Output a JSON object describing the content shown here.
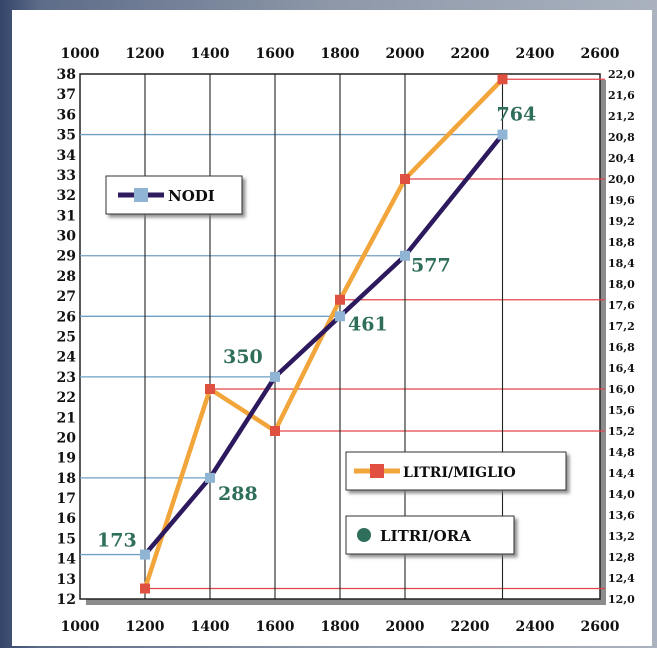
{
  "chart_data": {
    "type": "line",
    "x_ticks": [
      "1000",
      "1200",
      "1400",
      "1600",
      "1800",
      "2000",
      "2200",
      "2400",
      "2600"
    ],
    "left_ticks": [
      "12",
      "13",
      "14",
      "15",
      "16",
      "17",
      "18",
      "19",
      "20",
      "21",
      "22",
      "23",
      "24",
      "25",
      "26",
      "27",
      "28",
      "29",
      "30",
      "31",
      "32",
      "33",
      "34",
      "35",
      "36",
      "37",
      "38"
    ],
    "right_ticks": [
      "12,0",
      "12,4",
      "12,8",
      "13,2",
      "13,6",
      "14,0",
      "14,4",
      "14,8",
      "15,2",
      "15,6",
      "16,0",
      "16,4",
      "16,8",
      "17,2",
      "17,6",
      "18,0",
      "18,4",
      "18,8",
      "19,2",
      "19,6",
      "20,0",
      "20,4",
      "20,8",
      "21,2",
      "21,6",
      "22,0"
    ],
    "xlim": [
      1000,
      2600
    ],
    "ylim_left": [
      12,
      38
    ],
    "ylim_right": [
      12.0,
      22.0
    ],
    "legend": [
      {
        "label": "NODI",
        "color": "#2d1a5e",
        "marker": "#8fb4d4"
      },
      {
        "label": "LITRI/MIGLIO",
        "color": "#f2a53a",
        "marker": "#e05040"
      },
      {
        "label": "LITRI/ORA",
        "color": "#2e6e5a"
      }
    ],
    "series": [
      {
        "name": "NODI",
        "axis": "left",
        "color": "#2d1a5e",
        "points": [
          [
            1200,
            14.2
          ],
          [
            1400,
            18
          ],
          [
            1600,
            23
          ],
          [
            1800,
            26
          ],
          [
            2000,
            29
          ],
          [
            2300,
            35
          ]
        ]
      },
      {
        "name": "LITRI/MIGLIO",
        "axis": "right",
        "color": "#f2a53a",
        "points": [
          [
            1200,
            12.2
          ],
          [
            1400,
            16.0
          ],
          [
            1600,
            15.2
          ],
          [
            1800,
            17.7
          ],
          [
            2000,
            20.0
          ],
          [
            2300,
            21.9
          ]
        ]
      }
    ],
    "point_labels": [
      {
        "text": "173",
        "x": 1200,
        "y": 14.2
      },
      {
        "text": "288",
        "x": 1400,
        "y": 18
      },
      {
        "text": "350",
        "x": 1600,
        "y": 23
      },
      {
        "text": "461",
        "x": 1800,
        "y": 26
      },
      {
        "text": "577",
        "x": 2000,
        "y": 29
      },
      {
        "text": "764",
        "x": 2300,
        "y": 35
      }
    ]
  }
}
